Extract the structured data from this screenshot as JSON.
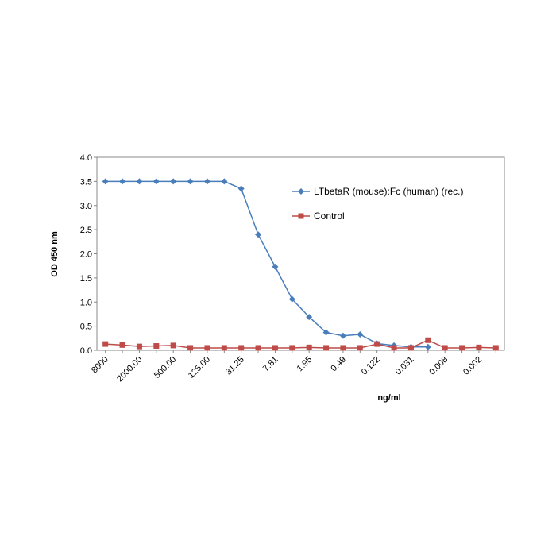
{
  "chart_data": {
    "type": "line",
    "ylabel": "OD  450 nm",
    "xlabel": "ng/ml",
    "categories": [
      "8000",
      null,
      "2000.00",
      null,
      "500.00",
      null,
      "125.00",
      null,
      "31.25",
      null,
      "7.81",
      null,
      "1.95",
      null,
      "0.49",
      null,
      "0.122",
      null,
      "0.031",
      null,
      "0.008",
      null,
      "0.002",
      null
    ],
    "series": [
      {
        "name": "LTbetaR (mouse):Fc (human) (rec.)",
        "color": "#4a7ebb",
        "marker": "diamond",
        "values": [
          3.5,
          3.5,
          3.5,
          3.5,
          3.5,
          3.5,
          3.5,
          3.5,
          3.35,
          2.4,
          1.73,
          1.06,
          0.69,
          0.37,
          0.3,
          0.33,
          0.14,
          0.1,
          0.07,
          0.07,
          null,
          null,
          null,
          null
        ]
      },
      {
        "name": "Control",
        "color": "#be4b48",
        "marker": "square",
        "values": [
          0.13,
          0.11,
          0.08,
          0.09,
          0.1,
          0.05,
          0.05,
          0.05,
          0.05,
          0.05,
          0.05,
          0.05,
          0.06,
          0.05,
          0.05,
          0.05,
          0.13,
          0.05,
          0.05,
          0.21,
          0.05,
          0.05,
          0.06,
          0.05
        ]
      }
    ],
    "ylim": [
      0,
      4
    ],
    "yticks": [
      {
        "value": 0,
        "label": "0.0"
      },
      0.5,
      {
        "value": 1,
        "label": "1.0"
      },
      1.5,
      {
        "value": 2,
        "label": "2.0"
      },
      2.5,
      {
        "value": 3,
        "label": "3.0"
      },
      3.5,
      {
        "value": 4,
        "label": "4.0"
      }
    ],
    "grid": false,
    "legend": "upper right"
  }
}
